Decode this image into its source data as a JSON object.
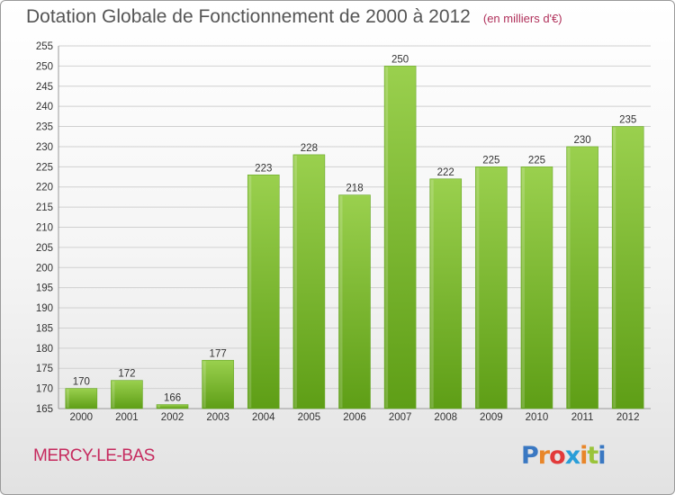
{
  "header": {
    "title": "Dotation Globale de Fonctionnement de 2000 à 2012",
    "unit": "(en milliers d'€)"
  },
  "footer": {
    "commune": "MERCY-LE-BAS",
    "logo_letters": [
      "P",
      "r",
      "o",
      "x",
      "i",
      "t",
      "i"
    ],
    "logo_colors": [
      "#3a78c2",
      "#e8862a",
      "#e23a3a",
      "#2a9ed8",
      "#e8862a",
      "#9ac43a",
      "#3a78c2"
    ]
  },
  "colors": {
    "bar_top": "#9ad04e",
    "bar_bottom": "#5e9e16",
    "bar_edge": "#6aa82a",
    "grid": "#d0d0d0"
  },
  "chart_data": {
    "type": "bar",
    "title": "Dotation Globale de Fonctionnement de 2000 à 2012",
    "subtitle": "(en milliers d'€)",
    "categories": [
      "2000",
      "2001",
      "2002",
      "2003",
      "2004",
      "2005",
      "2006",
      "2007",
      "2008",
      "2009",
      "2010",
      "2011",
      "2012"
    ],
    "values": [
      170,
      172,
      166,
      177,
      223,
      228,
      218,
      250,
      222,
      225,
      225,
      230,
      235
    ],
    "ylim": [
      165,
      255
    ],
    "yticks": [
      165,
      170,
      175,
      180,
      185,
      190,
      195,
      200,
      205,
      210,
      215,
      220,
      225,
      230,
      235,
      240,
      245,
      250,
      255
    ],
    "grid": true,
    "xlabel": "",
    "ylabel": ""
  }
}
